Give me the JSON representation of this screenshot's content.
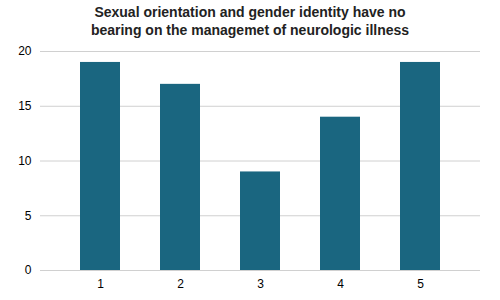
{
  "chart_data": {
    "type": "bar",
    "title": "Sexual orientation and gender identity have no\nbearing on the managemet of neurologic illness",
    "categories": [
      1,
      2,
      3,
      4,
      5
    ],
    "values": [
      19,
      17,
      9,
      14,
      19
    ],
    "color": "#1a6680",
    "ylim": [
      0,
      20
    ],
    "yticks": [
      0,
      5,
      10,
      15,
      20
    ],
    "grid": true
  }
}
